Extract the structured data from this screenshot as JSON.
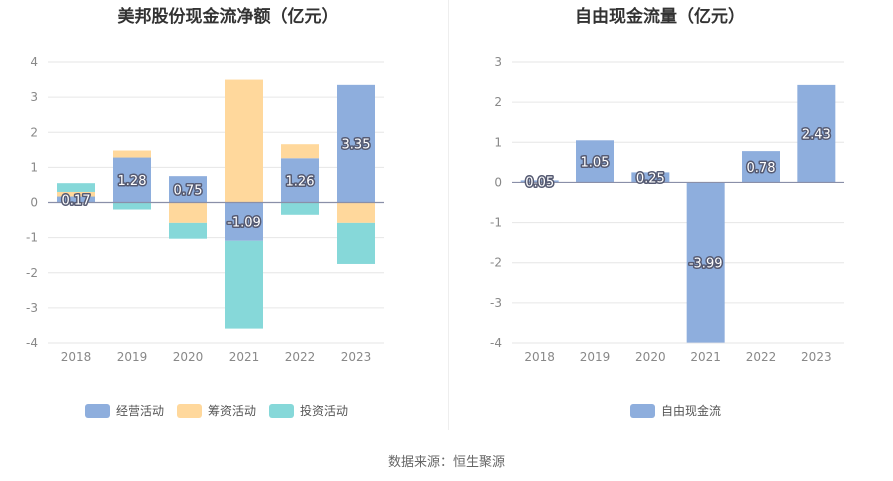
{
  "chart_data": [
    {
      "type": "bar",
      "stacked": true,
      "title": "美邦股份现金流净额（亿元）",
      "categories": [
        "2018",
        "2019",
        "2020",
        "2021",
        "2022",
        "2023"
      ],
      "ylim": [
        -4,
        4
      ],
      "yticks": [
        -4,
        -3,
        -2,
        -1,
        0,
        1,
        2,
        3,
        4
      ],
      "grid": true,
      "legend_position": "bottom",
      "series": [
        {
          "name": "经营活动",
          "color": "#8eaedd",
          "values": [
            0.17,
            1.28,
            0.75,
            -1.09,
            1.26,
            3.35
          ],
          "labels": [
            "0.17",
            "1.28",
            "0.75",
            "-1.09",
            "1.26",
            "3.35"
          ]
        },
        {
          "name": "筹资活动",
          "color": "#ffd89c",
          "values": [
            0.13,
            0.2,
            -0.58,
            3.5,
            0.4,
            -0.58
          ]
        },
        {
          "name": "投资活动",
          "color": "#86d8d9",
          "values": [
            0.25,
            -0.2,
            -0.45,
            -2.5,
            -0.35,
            -1.17
          ]
        }
      ]
    },
    {
      "type": "bar",
      "title": "自由现金流量（亿元）",
      "categories": [
        "2018",
        "2019",
        "2020",
        "2021",
        "2022",
        "2023"
      ],
      "ylim": [
        -4,
        3
      ],
      "yticks": [
        -4,
        -3,
        -2,
        -1,
        0,
        1,
        2,
        3
      ],
      "grid": true,
      "legend_position": "bottom",
      "series": [
        {
          "name": "自由现金流",
          "color": "#8eaedd",
          "values": [
            0.05,
            1.05,
            0.25,
            -3.99,
            0.78,
            2.43
          ],
          "labels": [
            "0.05",
            "1.05",
            "0.25",
            "-3.99",
            "0.78",
            "2.43"
          ]
        }
      ]
    }
  ],
  "source": "数据来源：恒生聚源"
}
